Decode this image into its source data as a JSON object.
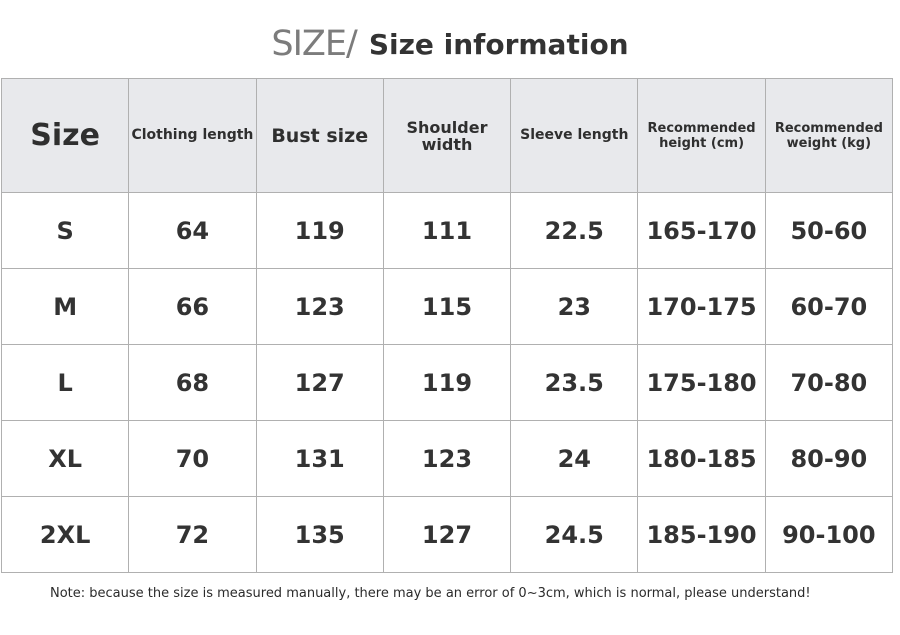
{
  "title": {
    "prefix": "SIZE/",
    "main": "Size information"
  },
  "table": {
    "headers": [
      "Size",
      "Clothing length",
      "Bust size",
      "Shoulder width",
      "Sleeve length",
      "Recommended height (cm)",
      "Recommended weight (kg)"
    ],
    "rows": [
      [
        "S",
        "64",
        "119",
        "111",
        "22.5",
        "165-170",
        "50-60"
      ],
      [
        "M",
        "66",
        "123",
        "115",
        "23",
        "170-175",
        "60-70"
      ],
      [
        "L",
        "68",
        "127",
        "119",
        "23.5",
        "175-180",
        "70-80"
      ],
      [
        "XL",
        "70",
        "131",
        "123",
        "24",
        "180-185",
        "80-90"
      ],
      [
        "2XL",
        "72",
        "135",
        "127",
        "24.5",
        "185-190",
        "90-100"
      ]
    ]
  },
  "note": "Note: because the size is measured manually, there may be an error of 0~3cm, which is normal, please understand!"
}
